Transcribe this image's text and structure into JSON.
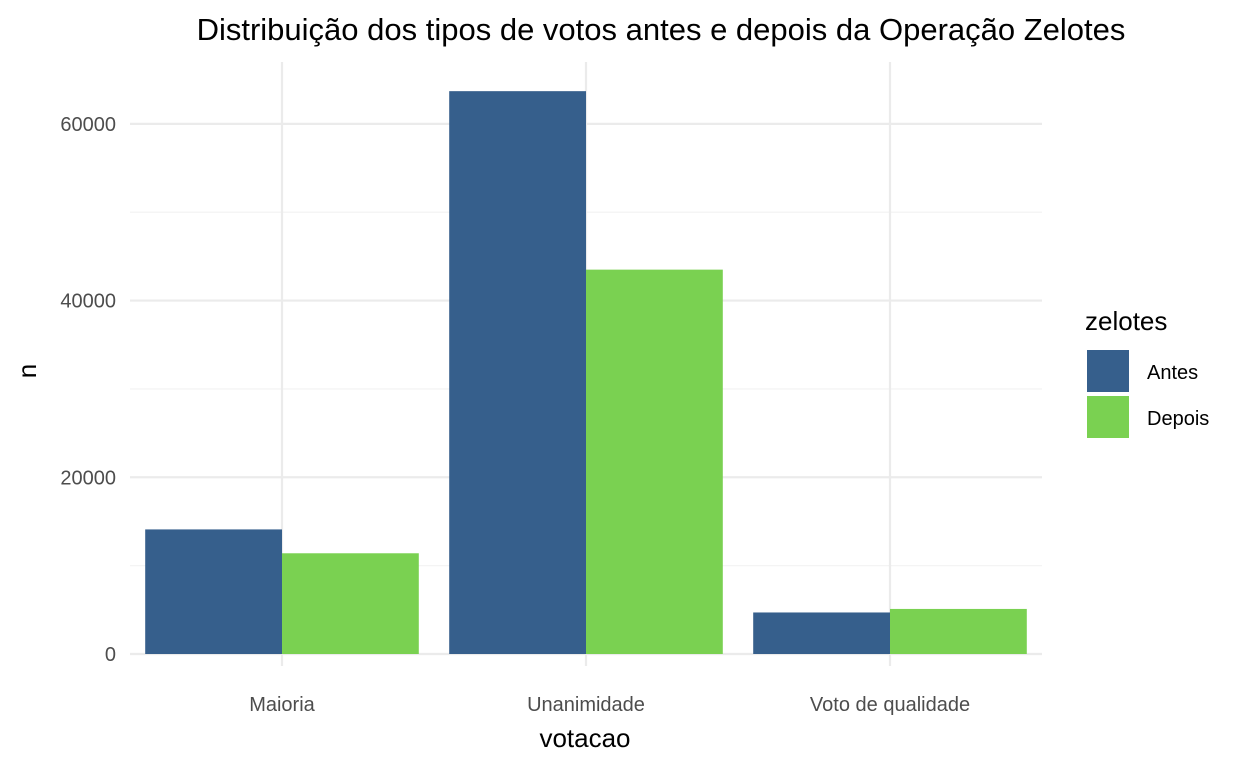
{
  "colors": {
    "Antes": "#365f8c",
    "Depois": "#7ad151"
  },
  "chart_data": {
    "type": "bar",
    "title": "Distribuição dos tipos de votos antes e depois da Operação Zelotes",
    "xlabel": "votacao",
    "ylabel": "n",
    "categories": [
      "Maioria",
      "Unanimidade",
      "Voto de qualidade"
    ],
    "series": [
      {
        "name": "Antes",
        "values": [
          14100,
          63700,
          4700
        ]
      },
      {
        "name": "Depois",
        "values": [
          11400,
          43500,
          5100
        ]
      }
    ],
    "ylim": [
      0,
      67000
    ],
    "yticks": [
      0,
      20000,
      40000,
      60000
    ],
    "ytick_labels": [
      "0",
      "20000",
      "40000",
      "60000"
    ],
    "grid": true,
    "legend": {
      "title": "zelotes",
      "position": "right"
    }
  }
}
